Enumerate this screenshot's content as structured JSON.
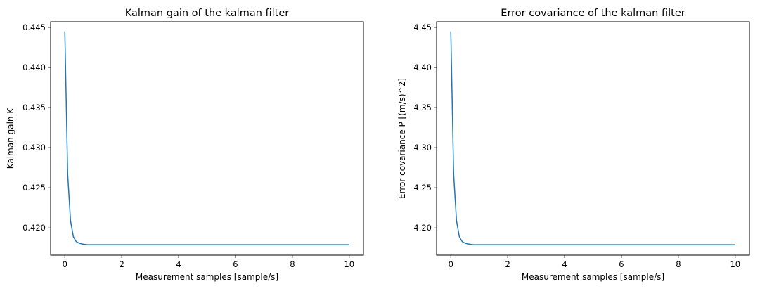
{
  "chart_data": [
    {
      "type": "line",
      "title": "Kalman gain of the kalman filter",
      "xlabel": "Measurement samples [sample/s]",
      "ylabel": "Kalman gain K",
      "xlim": [
        -0.5,
        10.5
      ],
      "ylim": [
        0.4166,
        0.4457
      ],
      "xticks": [
        0,
        2,
        4,
        6,
        8,
        10
      ],
      "yticks": [
        0.42,
        0.425,
        0.43,
        0.435,
        0.44,
        0.445
      ],
      "ytick_decimals": 3,
      "grid": false,
      "series": [
        {
          "color": "#1f77b4",
          "x": [
            0.0,
            0.1,
            0.2,
            0.3,
            0.4,
            0.5,
            0.6,
            0.7,
            0.8,
            1.0,
            2.0,
            4.0,
            6.0,
            8.0,
            10.0
          ],
          "y": [
            0.4445,
            0.4267,
            0.4209,
            0.4189,
            0.4183,
            0.4181,
            0.418,
            0.41795,
            0.4179,
            0.4179,
            0.4179,
            0.4179,
            0.4179,
            0.4179,
            0.4179
          ]
        }
      ]
    },
    {
      "type": "line",
      "title": "Error covariance of the kalman filter",
      "xlabel": "Measurement samples [sample/s]",
      "ylabel": "Error covariance P [(m/s)^2]",
      "xlim": [
        -0.5,
        10.5
      ],
      "ylim": [
        4.166,
        4.457
      ],
      "xticks": [
        0,
        2,
        4,
        6,
        8,
        10
      ],
      "yticks": [
        4.2,
        4.25,
        4.3,
        4.35,
        4.4,
        4.45
      ],
      "ytick_decimals": 2,
      "grid": false,
      "series": [
        {
          "color": "#1f77b4",
          "x": [
            0.0,
            0.1,
            0.2,
            0.3,
            0.4,
            0.5,
            0.6,
            0.7,
            0.8,
            1.0,
            2.0,
            4.0,
            6.0,
            8.0,
            10.0
          ],
          "y": [
            4.445,
            4.267,
            4.209,
            4.189,
            4.183,
            4.181,
            4.18,
            4.1795,
            4.179,
            4.179,
            4.179,
            4.179,
            4.179,
            4.179,
            4.179
          ]
        }
      ]
    }
  ]
}
